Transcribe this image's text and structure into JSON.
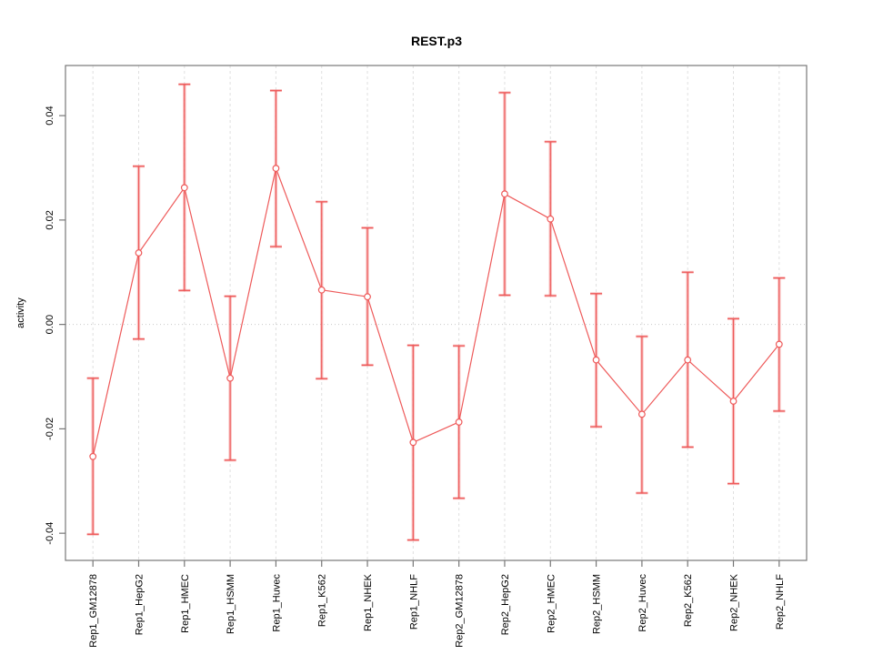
{
  "window": {
    "background": "#ffffff"
  },
  "chart_data": {
    "type": "line",
    "title": "REST.p3",
    "xlabel": "",
    "ylabel": "activity",
    "legend": "none",
    "grid": {
      "vertical_dashed_per_category": true,
      "horizontal_dotted_zero_line": true
    },
    "categories": [
      "Rep1_GM12878",
      "Rep1_HepG2",
      "Rep1_HMEC",
      "Rep1_HSMM",
      "Rep1_Huvec",
      "Rep1_K562",
      "Rep1_NHEK",
      "Rep1_NHLF",
      "Rep2_GM12878",
      "Rep2_HepG2",
      "Rep2_HMEC",
      "Rep2_HSMM",
      "Rep2_Huvec",
      "Rep2_K562",
      "Rep2_NHEK",
      "Rep2_NHLF"
    ],
    "series": [
      {
        "name": "activity",
        "marker": "open-circle",
        "values": [
          -0.0253,
          0.0137,
          0.0262,
          -0.0103,
          0.0299,
          0.0066,
          0.0053,
          -0.0226,
          -0.0187,
          0.025,
          0.0202,
          -0.0068,
          -0.0172,
          -0.0068,
          -0.0147,
          -0.0038
        ],
        "error_lower": [
          -0.0402,
          -0.0028,
          0.0065,
          -0.026,
          0.0149,
          -0.0104,
          -0.0078,
          -0.0413,
          -0.0333,
          0.0056,
          0.0055,
          -0.0196,
          -0.0323,
          -0.0235,
          -0.0305,
          -0.0166
        ],
        "error_upper": [
          -0.0103,
          0.0303,
          0.046,
          0.0054,
          0.0448,
          0.0235,
          0.0185,
          -0.004,
          -0.0041,
          0.0444,
          0.035,
          0.0059,
          -0.0023,
          0.01,
          0.0011,
          0.0089
        ]
      }
    ],
    "yticks": [
      -0.04,
      -0.02,
      0,
      0.02,
      0.04
    ],
    "ytick_labels": [
      "-0.04",
      "-0.02",
      "0.00",
      "0.02",
      "0.04"
    ],
    "ylim": [
      -0.0452,
      0.0496
    ],
    "xlim": [
      0.4,
      16.6
    ],
    "colors": {
      "series": "#ee5a5a",
      "series_light": "rgba(238,90,90,0.35)",
      "marker_fill": "#ffffff",
      "grid": "#e0e0e0",
      "zero_line": "#c9c9c9",
      "axis": "#777777",
      "text": "#000000"
    }
  }
}
